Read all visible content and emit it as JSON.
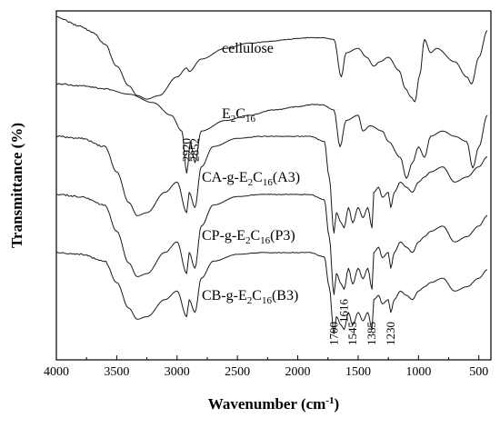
{
  "chart_data": {
    "type": "line",
    "xlabel": "Wavenumber (cm",
    "xlabel_sup": "-1",
    "xlabel_close": ")",
    "ylabel": "Transmittance (%)",
    "xlim": [
      4000,
      400
    ],
    "x_reversed": true,
    "x_ticks": [
      4000,
      3500,
      3000,
      2500,
      2000,
      1500,
      1000,
      500
    ],
    "grid": false,
    "series": [
      {
        "name": "cellulose",
        "label_parts": [
          {
            "t": "cellulose"
          }
        ],
        "offset": 0.0,
        "scale": 1.0,
        "points": [
          [
            4000,
            0.05
          ],
          [
            3800,
            0.15
          ],
          [
            3700,
            0.22
          ],
          [
            3600,
            0.35
          ],
          [
            3500,
            0.6
          ],
          [
            3400,
            0.82
          ],
          [
            3330,
            0.93
          ],
          [
            3250,
            0.97
          ],
          [
            3150,
            0.93
          ],
          [
            3000,
            0.72
          ],
          [
            2920,
            0.62
          ],
          [
            2900,
            0.66
          ],
          [
            2800,
            0.52
          ],
          [
            2600,
            0.4
          ],
          [
            2400,
            0.34
          ],
          [
            2200,
            0.32
          ],
          [
            2100,
            0.3
          ],
          [
            2000,
            0.29
          ],
          [
            1900,
            0.28
          ],
          [
            1800,
            0.28
          ],
          [
            1700,
            0.3
          ],
          [
            1640,
            0.72
          ],
          [
            1600,
            0.45
          ],
          [
            1500,
            0.4
          ],
          [
            1430,
            0.5
          ],
          [
            1370,
            0.6
          ],
          [
            1320,
            0.55
          ],
          [
            1250,
            0.5
          ],
          [
            1160,
            0.65
          ],
          [
            1110,
            0.85
          ],
          [
            1060,
            0.95
          ],
          [
            1030,
            1.0
          ],
          [
            990,
            0.7
          ],
          [
            950,
            0.3
          ],
          [
            900,
            0.45
          ],
          [
            850,
            0.4
          ],
          [
            700,
            0.55
          ],
          [
            600,
            0.72
          ],
          [
            560,
            0.8
          ],
          [
            500,
            0.5
          ],
          [
            430,
            0.2
          ]
        ]
      },
      {
        "name": "E2C16",
        "label_parts": [
          {
            "t": "E"
          },
          {
            "t": "2",
            "sub": true
          },
          {
            "t": "C"
          },
          {
            "t": "16",
            "sub": true
          }
        ],
        "offset": 0.0,
        "scale": 1.0,
        "points": [
          [
            4000,
            0.0
          ],
          [
            3800,
            0.02
          ],
          [
            3600,
            0.05
          ],
          [
            3400,
            0.1
          ],
          [
            3200,
            0.18
          ],
          [
            3050,
            0.3
          ],
          [
            2960,
            0.45
          ],
          [
            2920,
            0.85
          ],
          [
            2890,
            0.55
          ],
          [
            2852,
            0.75
          ],
          [
            2800,
            0.45
          ],
          [
            2600,
            0.35
          ],
          [
            2400,
            0.3
          ],
          [
            2200,
            0.25
          ],
          [
            2000,
            0.22
          ],
          [
            1900,
            0.2
          ],
          [
            1800,
            0.2
          ],
          [
            1700,
            0.25
          ],
          [
            1650,
            0.6
          ],
          [
            1600,
            0.35
          ],
          [
            1500,
            0.3
          ],
          [
            1460,
            0.45
          ],
          [
            1400,
            0.4
          ],
          [
            1300,
            0.45
          ],
          [
            1250,
            0.55
          ],
          [
            1150,
            0.7
          ],
          [
            1100,
            0.9
          ],
          [
            1050,
            0.75
          ],
          [
            1000,
            0.6
          ],
          [
            950,
            0.7
          ],
          [
            900,
            0.5
          ],
          [
            800,
            0.45
          ],
          [
            700,
            0.5
          ],
          [
            600,
            0.55
          ],
          [
            550,
            0.8
          ],
          [
            500,
            0.6
          ],
          [
            430,
            0.3
          ]
        ]
      },
      {
        "name": "CA-g-E2C16(A3)",
        "label_parts": [
          {
            "t": "CA-g-E"
          },
          {
            "t": "2",
            "sub": true
          },
          {
            "t": "C"
          },
          {
            "t": "16",
            "sub": true
          },
          {
            "t": "(A3)"
          }
        ],
        "offset": 0.0,
        "scale": 1.0,
        "points": [
          [
            4000,
            0.0
          ],
          [
            3800,
            0.02
          ],
          [
            3600,
            0.1
          ],
          [
            3500,
            0.35
          ],
          [
            3400,
            0.65
          ],
          [
            3330,
            0.78
          ],
          [
            3250,
            0.75
          ],
          [
            3100,
            0.55
          ],
          [
            3000,
            0.45
          ],
          [
            2920,
            0.75
          ],
          [
            2900,
            0.55
          ],
          [
            2852,
            0.7
          ],
          [
            2800,
            0.3
          ],
          [
            2700,
            0.1
          ],
          [
            2500,
            0.02
          ],
          [
            2300,
            0.0
          ],
          [
            2100,
            0.0
          ],
          [
            1900,
            0.0
          ],
          [
            1780,
            0.05
          ],
          [
            1740,
            0.4
          ],
          [
            1700,
            0.95
          ],
          [
            1680,
            0.75
          ],
          [
            1640,
            0.85
          ],
          [
            1616,
            0.9
          ],
          [
            1580,
            0.7
          ],
          [
            1545,
            0.85
          ],
          [
            1500,
            0.7
          ],
          [
            1460,
            0.8
          ],
          [
            1420,
            0.7
          ],
          [
            1385,
            0.9
          ],
          [
            1370,
            0.55
          ],
          [
            1330,
            0.5
          ],
          [
            1300,
            0.6
          ],
          [
            1250,
            0.55
          ],
          [
            1230,
            0.7
          ],
          [
            1200,
            0.55
          ],
          [
            1150,
            0.45
          ],
          [
            1100,
            0.5
          ],
          [
            1050,
            0.55
          ],
          [
            1000,
            0.45
          ],
          [
            950,
            0.4
          ],
          [
            900,
            0.35
          ],
          [
            800,
            0.3
          ],
          [
            700,
            0.45
          ],
          [
            600,
            0.4
          ],
          [
            500,
            0.3
          ],
          [
            430,
            0.2
          ]
        ]
      },
      {
        "name": "CP-g-E2C16(P3)",
        "label_parts": [
          {
            "t": "CP-g-E"
          },
          {
            "t": "2",
            "sub": true
          },
          {
            "t": "C"
          },
          {
            "t": "16",
            "sub": true
          },
          {
            "t": "(P3)"
          }
        ],
        "offset": 0.0,
        "scale": 1.0,
        "points": [
          [
            4000,
            0.0
          ],
          [
            3800,
            0.02
          ],
          [
            3600,
            0.1
          ],
          [
            3500,
            0.35
          ],
          [
            3400,
            0.65
          ],
          [
            3330,
            0.78
          ],
          [
            3250,
            0.75
          ],
          [
            3100,
            0.55
          ],
          [
            3000,
            0.45
          ],
          [
            2920,
            0.75
          ],
          [
            2900,
            0.55
          ],
          [
            2852,
            0.7
          ],
          [
            2800,
            0.3
          ],
          [
            2700,
            0.1
          ],
          [
            2500,
            0.02
          ],
          [
            2300,
            0.0
          ],
          [
            2100,
            0.0
          ],
          [
            1900,
            0.0
          ],
          [
            1780,
            0.05
          ],
          [
            1740,
            0.4
          ],
          [
            1700,
            0.95
          ],
          [
            1680,
            0.75
          ],
          [
            1640,
            0.85
          ],
          [
            1616,
            0.9
          ],
          [
            1580,
            0.7
          ],
          [
            1545,
            0.85
          ],
          [
            1500,
            0.7
          ],
          [
            1460,
            0.8
          ],
          [
            1420,
            0.7
          ],
          [
            1385,
            0.9
          ],
          [
            1370,
            0.55
          ],
          [
            1330,
            0.5
          ],
          [
            1300,
            0.6
          ],
          [
            1250,
            0.55
          ],
          [
            1230,
            0.7
          ],
          [
            1200,
            0.55
          ],
          [
            1150,
            0.45
          ],
          [
            1100,
            0.5
          ],
          [
            1050,
            0.55
          ],
          [
            1000,
            0.45
          ],
          [
            950,
            0.4
          ],
          [
            900,
            0.35
          ],
          [
            800,
            0.3
          ],
          [
            700,
            0.45
          ],
          [
            600,
            0.4
          ],
          [
            500,
            0.3
          ],
          [
            430,
            0.2
          ]
        ]
      },
      {
        "name": "CB-g-E2C16(B3)",
        "label_parts": [
          {
            "t": "CB-g-E"
          },
          {
            "t": "2",
            "sub": true
          },
          {
            "t": "C"
          },
          {
            "t": "16",
            "sub": true
          },
          {
            "t": "(B3)"
          }
        ],
        "offset": 0.0,
        "scale": 1.0,
        "points": [
          [
            4000,
            0.0
          ],
          [
            3800,
            0.02
          ],
          [
            3600,
            0.1
          ],
          [
            3500,
            0.35
          ],
          [
            3400,
            0.65
          ],
          [
            3330,
            0.78
          ],
          [
            3250,
            0.75
          ],
          [
            3100,
            0.55
          ],
          [
            3000,
            0.45
          ],
          [
            2920,
            0.75
          ],
          [
            2900,
            0.55
          ],
          [
            2852,
            0.7
          ],
          [
            2800,
            0.3
          ],
          [
            2700,
            0.1
          ],
          [
            2500,
            0.02
          ],
          [
            2300,
            0.0
          ],
          [
            2100,
            0.0
          ],
          [
            1900,
            0.0
          ],
          [
            1780,
            0.05
          ],
          [
            1740,
            0.4
          ],
          [
            1700,
            0.95
          ],
          [
            1680,
            0.75
          ],
          [
            1640,
            0.85
          ],
          [
            1616,
            0.9
          ],
          [
            1580,
            0.7
          ],
          [
            1545,
            0.85
          ],
          [
            1500,
            0.7
          ],
          [
            1460,
            0.8
          ],
          [
            1420,
            0.7
          ],
          [
            1385,
            0.9
          ],
          [
            1370,
            0.55
          ],
          [
            1330,
            0.5
          ],
          [
            1300,
            0.6
          ],
          [
            1250,
            0.55
          ],
          [
            1230,
            0.7
          ],
          [
            1200,
            0.55
          ],
          [
            1150,
            0.45
          ],
          [
            1100,
            0.5
          ],
          [
            1050,
            0.55
          ],
          [
            1000,
            0.45
          ],
          [
            950,
            0.4
          ],
          [
            900,
            0.35
          ],
          [
            800,
            0.3
          ],
          [
            700,
            0.45
          ],
          [
            600,
            0.4
          ],
          [
            500,
            0.3
          ],
          [
            430,
            0.2
          ]
        ]
      }
    ],
    "annotations": [
      {
        "text": "2920",
        "x": 2920,
        "rotate": -90
      },
      {
        "text": "2852",
        "x": 2852,
        "rotate": -90
      },
      {
        "text": "1700",
        "x": 1700,
        "rotate": -90
      },
      {
        "text": "1616",
        "x": 1616,
        "rotate": -90
      },
      {
        "text": "1545",
        "x": 1545,
        "rotate": -90
      },
      {
        "text": "1385",
        "x": 1385,
        "rotate": -90
      },
      {
        "text": "1230",
        "x": 1230,
        "rotate": -90
      }
    ],
    "colors": {
      "line": "#1a1a1a",
      "axis": "#000000",
      "background": "#ffffff"
    }
  }
}
